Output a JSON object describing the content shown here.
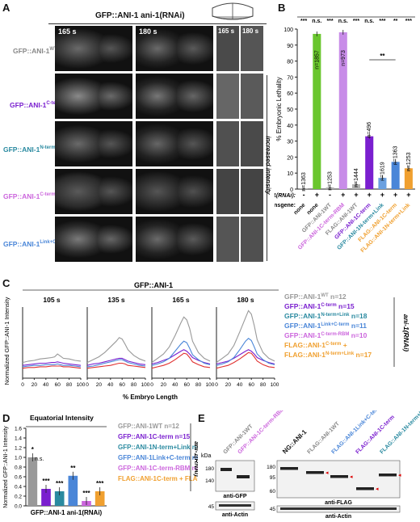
{
  "panel_A": {
    "letter": "A",
    "title": "GFP::ANI-1 ani-1(RNAi)",
    "times": [
      "165 s",
      "180 s",
      "165 s",
      "180 s"
    ],
    "rows": [
      {
        "label": "GFP::ANI-1",
        "sup": "WT",
        "color": "#888888"
      },
      {
        "label": "GFP::ANI-1",
        "sup": "C-term",
        "color": "#7a1fcf"
      },
      {
        "label": "GFP::ANI-1",
        "sup": "N-term+Link",
        "color": "#2a8aa0"
      },
      {
        "label": "GFP::ANI-1",
        "sup": "C-term-RBM",
        "color": "#cc66dd"
      },
      {
        "label": "GFP::ANI-1",
        "sup": "Link+C-term",
        "color": "#4a86d8"
      }
    ],
    "side_label": "increased intensity"
  },
  "panel_B": {
    "letter": "B",
    "significance": [
      "***",
      "n.s.",
      "***",
      "n.s.",
      "***",
      "n.s.",
      "***",
      "**",
      "***"
    ],
    "pair_sig": "**",
    "ylabel": "% Embryonic Lethality",
    "row1_label": "ani-1(RNAi):",
    "row2_label": "Transgene:",
    "rnai": [
      "-",
      "+",
      "-",
      "+",
      "+",
      "+",
      "+",
      "+",
      "+"
    ],
    "transgenes": [
      {
        "name": "none",
        "color": "#111111"
      },
      {
        "name": "none",
        "color": "#111111"
      },
      {
        "name": "GFP::ANI-1WT",
        "color": "#888888"
      },
      {
        "name": "GFP::ANI-1C-term-RBM",
        "color": "#cc66dd"
      },
      {
        "name": "FLAG::ANI-1WT",
        "color": "#888888"
      },
      {
        "name": "GFP::ANI-1C-term",
        "color": "#7a1fcf"
      },
      {
        "name": "GFP::ANI-1N-term+Link",
        "color": "#2a8aa0"
      },
      {
        "name": "FLAG::ANI-1C-term",
        "color": "#f0a030"
      },
      {
        "name": "FLAG::ANI-1N-term+Link",
        "color": "#f0a030"
      }
    ]
  },
  "panel_C": {
    "letter": "C",
    "title": "GFP::ANI-1",
    "ylabel": "Normalized GFP::ANI-1 Intensity",
    "xlabel": "% Embryo Length",
    "times": [
      "105 s",
      "135 s",
      "165 s",
      "180 s"
    ],
    "legend": [
      {
        "text": "GFP::ANI-1",
        "sup": "WT",
        "n": "n=12",
        "color": "#999999"
      },
      {
        "text": "GFP::ANI-1",
        "sup": "C-term",
        "n": "n=15",
        "color": "#7a1fcf"
      },
      {
        "text": "GFP::ANI-1",
        "sup": "N-term+Link",
        "n": "n=18",
        "color": "#2a8aa0"
      },
      {
        "text": "GFP::ANI-1",
        "sup": "Link+C-term",
        "n": "n=11",
        "color": "#4a86d8"
      },
      {
        "text": "GFP::ANI-1",
        "sup": "C-term-RBM",
        "n": "n=10",
        "color": "#cc66dd"
      },
      {
        "text": "FLAG::ANI-1",
        "sup": "C-term",
        "n": "+",
        "color": "#f0a030"
      },
      {
        "text": "FLAG::ANI-1",
        "sup": "N-term+Link",
        "n": "n=17",
        "color": "#f0a030"
      }
    ],
    "side_label": "ani-1(RNAi)"
  },
  "panel_D": {
    "letter": "D",
    "title": "Equatorial Intensity",
    "ylabel": "Normalized GFP::ANI-1 Intensity",
    "xlabel": "GFP::ANI-1 ani-1(RNAi)",
    "ns": "n.s.",
    "stars": [
      "*",
      "***",
      "***",
      "**",
      "***",
      "***"
    ],
    "side_label": "ani-1(RNAi)"
  },
  "panel_E": {
    "letter": "E",
    "left_lanes": [
      "GFP::ANI-1WT",
      "GFP::ANI-1C-term-RBM"
    ],
    "right_lanes": [
      "NG::ANI-1",
      "FLAG::ANI-1WT",
      "FLAG::ANI-1Link+C-term",
      "FLAG::ANI-1C-term",
      "FLAG::ANI-1N-term+Link"
    ],
    "kda": "kDa",
    "left_markers": [
      "180",
      "140"
    ],
    "right_markers": [
      "180",
      "95",
      "60"
    ],
    "actin_marker": "45",
    "anti_gfp": "anti-GFP",
    "anti_flag": "anti-FLAG",
    "anti_actin": "anti-Actin"
  },
  "chart_data": [
    {
      "type": "bar",
      "panel": "B",
      "ylabel": "% Embryonic Lethality",
      "ylim": [
        0,
        100
      ],
      "yticks": [
        0,
        10,
        20,
        30,
        40,
        50,
        60,
        70,
        80,
        90,
        100
      ],
      "categories": [
        "none -",
        "none +",
        "GFP::ANI-1WT -",
        "GFP::ANI-1C-term-RBM +",
        "FLAG::ANI-1WT +",
        "GFP::ANI-1C-term +",
        "GFP::ANI-1N-term+Link +",
        "FLAG::ANI-1C-term +",
        "FLAG::ANI-1N-term+Link +"
      ],
      "values": [
        0.5,
        97,
        1,
        98,
        3,
        33,
        7,
        17,
        13
      ],
      "n_labels": [
        "n=1363",
        "n=1857",
        "n=1253",
        "n=973",
        "n=1444",
        "n=496",
        "n=1619",
        "n=1363",
        "n=1253"
      ],
      "colors": [
        "#b0b0b0",
        "#6ac62e",
        "#b0b0b0",
        "#c88ce8",
        "#b0b0b0",
        "#7a1fcf",
        "#6aa0e0",
        "#4a86d8",
        "#f0a030"
      ]
    },
    {
      "type": "line",
      "panel": "C",
      "xlabel": "% Embryo Length",
      "ylabel": "Normalized GFP::ANI-1 Intensity",
      "xlim": [
        0,
        100
      ],
      "xticks": [
        0,
        20,
        40,
        60,
        80,
        100
      ],
      "ylim": [
        0,
        1
      ],
      "x": [
        0,
        10,
        20,
        30,
        40,
        50,
        55,
        60,
        65,
        70,
        80,
        90,
        100
      ],
      "subplots": [
        {
          "time": "105 s",
          "series": [
            {
              "name": "GFP::ANI-1WT",
              "values": [
                0.22,
                0.24,
                0.25,
                0.27,
                0.28,
                0.29,
                0.3,
                0.34,
                0.31,
                0.28,
                0.27,
                0.25,
                0.24
              ]
            },
            {
              "name": "GFP::ANI-1C-term",
              "values": [
                0.18,
                0.19,
                0.2,
                0.21,
                0.21,
                0.22,
                0.22,
                0.23,
                0.22,
                0.21,
                0.2,
                0.19,
                0.18
              ]
            },
            {
              "name": "GFP::ANI-1N-term+Link",
              "values": [
                0.16,
                0.17,
                0.18,
                0.18,
                0.19,
                0.19,
                0.19,
                0.2,
                0.19,
                0.18,
                0.18,
                0.17,
                0.16
              ]
            },
            {
              "name": "FLAG::ANI-1C-term",
              "values": [
                0.14,
                0.15,
                0.15,
                0.16,
                0.16,
                0.17,
                0.17,
                0.17,
                0.17,
                0.16,
                0.16,
                0.15,
                0.14
              ]
            }
          ]
        },
        {
          "time": "135 s",
          "series": [
            {
              "name": "GFP::ANI-1WT",
              "values": [
                0.22,
                0.26,
                0.3,
                0.36,
                0.44,
                0.52,
                0.57,
                0.55,
                0.48,
                0.4,
                0.32,
                0.27,
                0.24
              ]
            },
            {
              "name": "GFP::ANI-1C-term",
              "values": [
                0.18,
                0.2,
                0.21,
                0.23,
                0.25,
                0.27,
                0.28,
                0.28,
                0.26,
                0.24,
                0.22,
                0.2,
                0.19
              ]
            },
            {
              "name": "GFP::ANI-1N-term+Link",
              "values": [
                0.16,
                0.17,
                0.19,
                0.21,
                0.23,
                0.25,
                0.26,
                0.26,
                0.24,
                0.22,
                0.2,
                0.18,
                0.17
              ]
            },
            {
              "name": "FLAG::ANI-1C-term",
              "values": [
                0.14,
                0.15,
                0.16,
                0.17,
                0.18,
                0.2,
                0.21,
                0.21,
                0.2,
                0.18,
                0.17,
                0.16,
                0.15
              ]
            }
          ]
        },
        {
          "time": "165 s",
          "series": [
            {
              "name": "GFP::ANI-1WT",
              "values": [
                0.22,
                0.28,
                0.34,
                0.44,
                0.6,
                0.78,
                0.86,
                0.82,
                0.7,
                0.52,
                0.36,
                0.28,
                0.24
              ]
            },
            {
              "name": "GFP::ANI-1C-term",
              "values": [
                0.2,
                0.22,
                0.25,
                0.28,
                0.33,
                0.38,
                0.4,
                0.38,
                0.34,
                0.29,
                0.25,
                0.22,
                0.2
              ]
            },
            {
              "name": "GFP::ANI-1N-term+Link",
              "values": [
                0.18,
                0.2,
                0.23,
                0.28,
                0.38,
                0.48,
                0.52,
                0.5,
                0.42,
                0.33,
                0.26,
                0.21,
                0.19
              ]
            },
            {
              "name": "FLAG::ANI-1C-term",
              "values": [
                0.14,
                0.16,
                0.18,
                0.21,
                0.26,
                0.32,
                0.35,
                0.34,
                0.29,
                0.23,
                0.19,
                0.16,
                0.15
              ]
            }
          ]
        },
        {
          "time": "180 s",
          "series": [
            {
              "name": "GFP::ANI-1WT",
              "values": [
                0.22,
                0.28,
                0.34,
                0.46,
                0.65,
                0.85,
                0.95,
                0.9,
                0.74,
                0.54,
                0.36,
                0.28,
                0.24
              ]
            },
            {
              "name": "GFP::ANI-1C-term",
              "values": [
                0.2,
                0.22,
                0.24,
                0.28,
                0.33,
                0.38,
                0.4,
                0.38,
                0.34,
                0.29,
                0.25,
                0.22,
                0.2
              ]
            },
            {
              "name": "GFP::ANI-1N-term+Link",
              "values": [
                0.18,
                0.2,
                0.23,
                0.29,
                0.4,
                0.52,
                0.56,
                0.53,
                0.44,
                0.34,
                0.26,
                0.21,
                0.19
              ]
            },
            {
              "name": "FLAG::ANI-1C-term",
              "values": [
                0.14,
                0.16,
                0.18,
                0.22,
                0.27,
                0.33,
                0.36,
                0.35,
                0.3,
                0.24,
                0.19,
                0.16,
                0.15
              ]
            }
          ]
        }
      ]
    },
    {
      "type": "bar",
      "panel": "D",
      "title": "Equatorial Intensity",
      "ylabel": "Normalized GFP::ANI-1 Intensity",
      "ylim": [
        0,
        1.6
      ],
      "yticks": [
        0,
        0.2,
        0.4,
        0.6,
        0.8,
        1.0,
        1.2,
        1.4,
        1.6
      ],
      "categories": [
        "GFP::ANI-1WT",
        "GFP::ANI-1C-term",
        "GFP::ANI-1N-term+Link",
        "GFP::ANI-1Link+C-term",
        "GFP::ANI-1C-term-RBM",
        "FLAG::ANI-1C-term + FLAG::ANI-1N-term+Link"
      ],
      "values": [
        1.0,
        0.35,
        0.3,
        0.62,
        0.1,
        0.3
      ],
      "legend": [
        "GFP::ANI-1WT n=12",
        "GFP::ANI-1C-term n=15",
        "GFP::ANI-1N-term+Link n=18",
        "GFP::ANI-1Link+C-term n=11",
        "GFP::ANI-1C-term-RBM n=10",
        "FLAG::ANI-1C-term + FLAG::ANI-1N-term+Link n=17"
      ],
      "colors": [
        "#999999",
        "#7a1fcf",
        "#2a8aa0",
        "#4a86d8",
        "#cc66dd",
        "#f0a030"
      ]
    }
  ]
}
